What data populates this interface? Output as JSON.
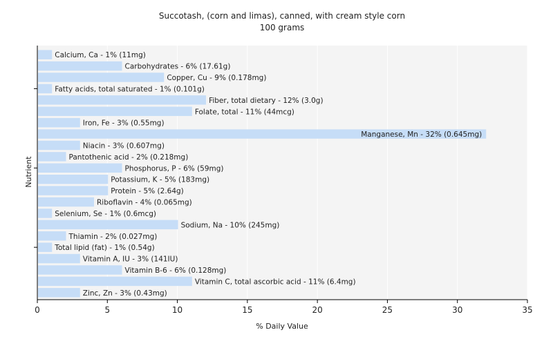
{
  "chart_data": {
    "type": "bar",
    "orientation": "horizontal",
    "title": "Succotash, (corn and limas), canned, with cream style corn",
    "subtitle": "100 grams",
    "xlabel": "% Daily Value",
    "ylabel": "Nutrient",
    "xlim": [
      0,
      35
    ],
    "xticks": [
      "0",
      "5",
      "10",
      "15",
      "20",
      "25",
      "30",
      "35"
    ],
    "grid": true,
    "colors": {
      "bar": "#c6ddf7",
      "background": "#f4f4f4",
      "grid": "#ffffff",
      "axis": "#000000"
    },
    "categories": [
      "Calcium, Ca - 1% (11mg)",
      "Carbohydrates - 6% (17.61g)",
      "Copper, Cu - 9% (0.178mg)",
      "Fatty acids, total saturated - 1% (0.101g)",
      "Fiber, total dietary - 12% (3.0g)",
      "Folate, total - 11% (44mcg)",
      "Iron, Fe - 3% (0.55mg)",
      "Manganese, Mn - 32% (0.645mg)",
      "Niacin - 3% (0.607mg)",
      "Pantothenic acid - 2% (0.218mg)",
      "Phosphorus, P - 6% (59mg)",
      "Potassium, K - 5% (183mg)",
      "Protein - 5% (2.64g)",
      "Riboflavin - 4% (0.065mg)",
      "Selenium, Se - 1% (0.6mcg)",
      "Sodium, Na - 10% (245mg)",
      "Thiamin - 2% (0.027mg)",
      "Total lipid (fat) - 1% (0.54g)",
      "Vitamin A, IU - 3% (141IU)",
      "Vitamin B-6 - 6% (0.128mg)",
      "Vitamin C, total ascorbic acid - 11% (6.4mg)",
      "Zinc, Zn - 3% (0.43mg)"
    ],
    "values": [
      1,
      6,
      9,
      1,
      12,
      11,
      3,
      32,
      3,
      2,
      6,
      5,
      5,
      4,
      1,
      10,
      2,
      1,
      3,
      6,
      11,
      3
    ]
  }
}
